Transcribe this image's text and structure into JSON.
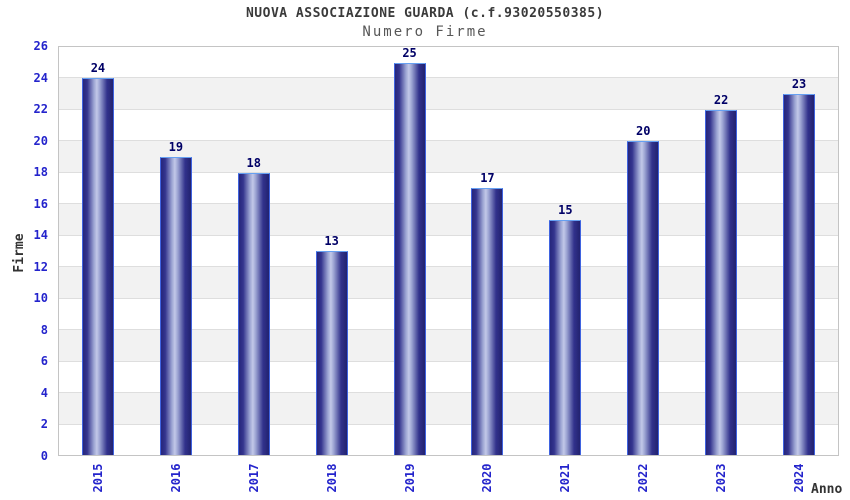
{
  "header": {
    "title": "NUOVA ASSOCIAZIONE GUARDA (c.f.93020550385)",
    "subtitle": "Numero Firme"
  },
  "chart_data": {
    "type": "bar",
    "title": "NUOVA ASSOCIAZIONE GUARDA (c.f.93020550385)",
    "subtitle": "Numero Firme",
    "categories": [
      "2015",
      "2016",
      "2017",
      "2018",
      "2019",
      "2020",
      "2021",
      "2022",
      "2023",
      "2024"
    ],
    "values": [
      24,
      19,
      18,
      13,
      25,
      17,
      15,
      20,
      22,
      23
    ],
    "xlabel": "Anno",
    "ylabel": "Firme",
    "ylim": [
      0,
      26
    ],
    "ytick_step": 2,
    "ytick_labels": [
      "0",
      "2",
      "4",
      "6",
      "8",
      "10",
      "12",
      "14",
      "16",
      "18",
      "20",
      "22",
      "24",
      "26"
    ],
    "legend": "none",
    "grid": "alternating horizontal bands every 2 units",
    "colors": {
      "bar_dark": "#26267c",
      "bar_highlight": "#c2c8e8",
      "bar_border": "#3f63e0",
      "axis_tick_label": "#2424cc",
      "value_label": "#000066",
      "title": "#3a3a3a",
      "subtitle": "#575757",
      "band_gray": "#f2f2f2",
      "band_white": "#ffffff",
      "grid_line": "#dedede",
      "plot_border": "#c4c4c4",
      "background": "#ffffff"
    }
  }
}
